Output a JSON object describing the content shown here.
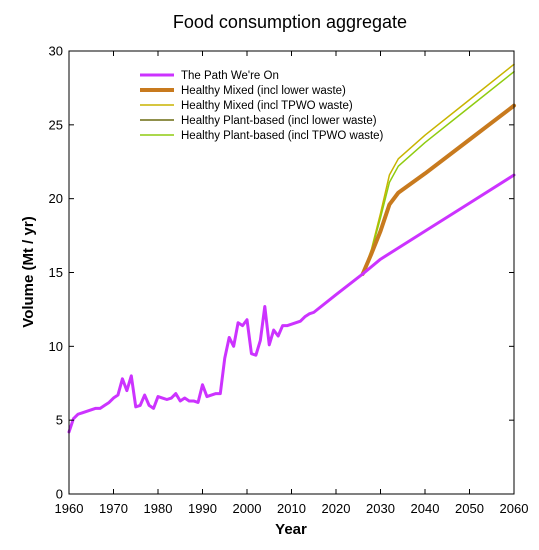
{
  "chart_data": {
    "type": "line",
    "title": "Food consumption aggregate",
    "xlabel": "Year",
    "ylabel": "Volume (Mt / yr)",
    "xlim": [
      1960,
      2060
    ],
    "ylim": [
      0,
      30
    ],
    "xticks": [
      1960,
      1970,
      1980,
      1990,
      2000,
      2010,
      2020,
      2030,
      2040,
      2050,
      2060
    ],
    "yticks": [
      0,
      5,
      10,
      15,
      20,
      25,
      30
    ],
    "grid": false,
    "legend_position": "top-left",
    "series": [
      {
        "name": "Healthy Mixed (incl TPWO waste)",
        "color": "#c8b400",
        "x": [
          2026,
          2028,
          2030,
          2032,
          2034,
          2040,
          2050,
          2060
        ],
        "y": [
          14.9,
          16.6,
          19.0,
          21.6,
          22.7,
          24.3,
          26.7,
          29.1
        ]
      },
      {
        "name": "Healthy Plant-based (incl TPWO waste)",
        "color": "#8fcc10",
        "x": [
          2026,
          2028,
          2030,
          2032,
          2034,
          2040,
          2050,
          2060
        ],
        "y": [
          14.9,
          16.5,
          18.7,
          21.1,
          22.2,
          23.8,
          26.2,
          28.6
        ]
      },
      {
        "name": "Healthy Plant-based (incl lower waste)",
        "color": "#6b6b10",
        "x": [
          2026,
          2028,
          2030,
          2032,
          2034,
          2040,
          2050,
          2060
        ],
        "y": [
          14.9,
          16.3,
          17.8,
          19.6,
          20.4,
          21.7,
          24.0,
          26.3
        ]
      },
      {
        "name": "Healthy Mixed (incl lower waste)",
        "color": "#c87a1e",
        "x": [
          2026,
          2028,
          2030,
          2032,
          2034,
          2040,
          2050,
          2060
        ],
        "y": [
          14.9,
          16.3,
          17.8,
          19.6,
          20.4,
          21.7,
          24.0,
          26.3
        ]
      },
      {
        "name": "The Path We're On",
        "color": "#cc33ff",
        "x": [
          1960,
          1961,
          1962,
          1963,
          1964,
          1965,
          1966,
          1967,
          1968,
          1969,
          1970,
          1971,
          1972,
          1973,
          1974,
          1975,
          1976,
          1977,
          1978,
          1979,
          1980,
          1981,
          1982,
          1983,
          1984,
          1985,
          1986,
          1987,
          1988,
          1989,
          1990,
          1991,
          1992,
          1993,
          1994,
          1995,
          1996,
          1997,
          1998,
          1999,
          2000,
          2001,
          2002,
          2003,
          2004,
          2005,
          2006,
          2007,
          2008,
          2009,
          2010,
          2011,
          2012,
          2013,
          2014,
          2015,
          2020,
          2026,
          2030,
          2040,
          2050,
          2060
        ],
        "y": [
          4.2,
          5.1,
          5.4,
          5.5,
          5.6,
          5.7,
          5.8,
          5.8,
          6.0,
          6.2,
          6.5,
          6.7,
          7.8,
          7.0,
          8.0,
          5.9,
          6.0,
          6.7,
          6.0,
          5.8,
          6.6,
          6.5,
          6.4,
          6.5,
          6.8,
          6.3,
          6.5,
          6.3,
          6.3,
          6.2,
          7.4,
          6.6,
          6.7,
          6.8,
          6.8,
          9.2,
          10.6,
          10.0,
          11.6,
          11.4,
          11.8,
          9.5,
          9.4,
          10.4,
          12.7,
          10.1,
          11.1,
          10.7,
          11.4,
          11.4,
          11.5,
          11.6,
          11.7,
          12.0,
          12.2,
          12.3,
          13.5,
          14.9,
          15.9,
          17.8,
          19.7,
          21.6
        ]
      }
    ],
    "legend": [
      {
        "label": "The Path We're On",
        "color": "#cc33ff",
        "width": 3
      },
      {
        "label": "Healthy Mixed (incl lower waste)",
        "color": "#c87a1e",
        "width": 4
      },
      {
        "label": "Healthy Mixed (incl TPWO waste)",
        "color": "#c8b400",
        "width": 1.5
      },
      {
        "label": "Healthy Plant-based (incl lower waste)",
        "color": "#6b6b10",
        "width": 1.5
      },
      {
        "label": "Healthy Plant-based (incl TPWO waste)",
        "color": "#8fcc10",
        "width": 1.5
      }
    ]
  }
}
